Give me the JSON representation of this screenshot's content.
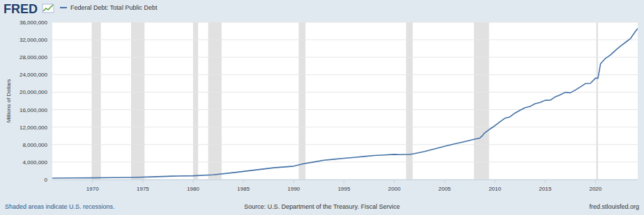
{
  "chart_data": {
    "type": "line",
    "brand": "FRED",
    "y_label": "Millions of Dollars",
    "footnote": "Shaded areas indicate U.S. recessions.",
    "source": "Source: U.S. Department of the Treasury. Fiscal Service",
    "website": "fred.stlouisfed.org",
    "x": [
      1966.0,
      1968.0,
      1970.0,
      1972.0,
      1974.0,
      1976.0,
      1978.0,
      1980.0,
      1982.0,
      1984.0,
      1986.0,
      1988.0,
      1990.0,
      1991.0,
      1992.0,
      1993.0,
      1994.0,
      1995.0,
      1996.0,
      1997.0,
      1998.0,
      1999.0,
      2000.0,
      2000.5,
      2001.0,
      2001.5,
      2002.0,
      2003.0,
      2004.0,
      2005.0,
      2006.0,
      2007.0,
      2008.0,
      2008.5,
      2008.75,
      2009.0,
      2009.5,
      2010.0,
      2010.5,
      2011.0,
      2011.5,
      2012.0,
      2012.5,
      2013.0,
      2013.5,
      2014.0,
      2014.5,
      2015.0,
      2015.5,
      2016.0,
      2016.5,
      2017.0,
      2017.5,
      2018.0,
      2018.5,
      2019.0,
      2019.5,
      2020.0,
      2020.25,
      2020.5,
      2021.0,
      2021.5,
      2022.0,
      2022.5,
      2023.0,
      2023.5,
      2024.0,
      2024.2
    ],
    "series": [
      {
        "name": "Federal Debt: Total Public Debt",
        "color": "#4572a7",
        "values": [
          320999,
          358029,
          382603,
          435936,
          483893,
          620433,
          780425,
          863451,
          1079750,
          1572266,
          2125303,
          2684392,
          3052000,
          3614000,
          3998000,
          4410000,
          4643000,
          4865000,
          5052000,
          5282000,
          5502000,
          5614000,
          5760000,
          5686000,
          5727000,
          5727000,
          5937000,
          6405000,
          7001000,
          7596000,
          8171000,
          8680000,
          9229000,
          9492000,
          10025000,
          10700000,
          11545000,
          12311000,
          13202000,
          14025000,
          14343000,
          15223000,
          15856000,
          16433000,
          16738000,
          17352000,
          17633000,
          18141000,
          18152000,
          18922000,
          19381000,
          19977000,
          19845000,
          20493000,
          21195000,
          21974000,
          22023000,
          23201000,
          23201000,
          26477000,
          27748000,
          28529000,
          29617000,
          30568000,
          31420000,
          32332000,
          34001000,
          34587000
        ]
      }
    ],
    "recessions": [
      [
        1969.92,
        1970.83
      ],
      [
        1973.83,
        1975.17
      ],
      [
        1980.0,
        1980.5
      ],
      [
        1981.5,
        1982.83
      ],
      [
        1990.5,
        1991.17
      ],
      [
        2001.17,
        2001.83
      ],
      [
        2007.92,
        2009.42
      ],
      [
        2020.08,
        2020.25
      ]
    ],
    "xlim": [
      1966.0,
      2024.2
    ],
    "xticks": [
      1970,
      1975,
      1980,
      1985,
      1990,
      1995,
      2000,
      2005,
      2010,
      2015,
      2020
    ],
    "ylim": [
      0,
      36000000
    ],
    "yticks": [
      0,
      {
        "value": 4000000,
        "label": "4,000,000"
      },
      {
        "value": 8000000,
        "label": "8,000,000"
      },
      {
        "value": 12000000,
        "label": "12,000,000"
      },
      {
        "value": 16000000,
        "label": "16,000,000"
      },
      {
        "value": 20000000,
        "label": "20,000,000"
      },
      {
        "value": 24000000,
        "label": "24,000,000"
      },
      {
        "value": 28000000,
        "label": "28,000,000"
      },
      {
        "value": 32000000,
        "label": "32,000,000"
      },
      {
        "value": 36000000,
        "label": "36,000,000"
      }
    ],
    "grid": true
  }
}
